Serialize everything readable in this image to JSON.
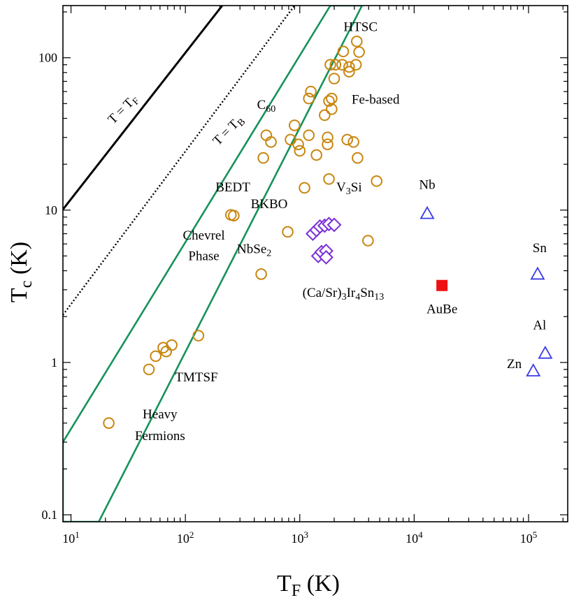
{
  "chart_data": {
    "type": "scatter",
    "xscale": "log",
    "yscale": "log",
    "xlim": [
      8.5,
      220000
    ],
    "ylim": [
      0.09,
      220
    ],
    "xlabel": {
      "main": "T",
      "sub": "F",
      "unit": " (K)"
    },
    "ylabel": {
      "main": "T",
      "sub": "c",
      "unit": " (K)"
    },
    "xticks": [
      {
        "value": 10,
        "base": "10",
        "exp": "1"
      },
      {
        "value": 100,
        "base": "10",
        "exp": "2"
      },
      {
        "value": 1000,
        "base": "10",
        "exp": "3"
      },
      {
        "value": 10000,
        "base": "10",
        "exp": "4"
      },
      {
        "value": 100000,
        "base": "10",
        "exp": "5"
      }
    ],
    "yticks": [
      {
        "value": 0.1,
        "label": "0.1"
      },
      {
        "value": 1,
        "label": "1"
      },
      {
        "value": 10,
        "label": "10"
      },
      {
        "value": 100,
        "label": "100"
      }
    ],
    "colors": {
      "circle": "#c8860f",
      "diamond": "#7a2fd6",
      "triangle": "#3a3ae8",
      "square": "#ee1111",
      "band": "#17925a",
      "line": "#000000"
    },
    "lines": [
      {
        "name": "T = T_F",
        "style": "solid",
        "points": [
          [
            8.5,
            10.1
          ],
          [
            210,
            220
          ]
        ]
      },
      {
        "name": "T = T_B",
        "style": "dotted",
        "points": [
          [
            8.5,
            2.05
          ],
          [
            900,
            220
          ]
        ]
      }
    ],
    "band": {
      "points": [
        [
          8.5,
          0.09
        ],
        [
          17.5,
          0.09
        ],
        [
          3500,
          220
        ],
        [
          1850,
          220
        ],
        [
          8.5,
          0.3
        ]
      ]
    },
    "series": [
      {
        "marker": "circle",
        "points": [
          [
            21.4,
            0.4
          ],
          [
            48,
            0.9
          ],
          [
            55,
            1.1
          ],
          [
            64,
            1.25
          ],
          [
            68,
            1.18
          ],
          [
            76,
            1.3
          ],
          [
            130,
            1.5
          ],
          [
            460,
            3.8
          ],
          [
            785,
            7.2
          ],
          [
            250,
            9.3
          ],
          [
            265,
            9.2
          ],
          [
            1100,
            14
          ],
          [
            1800,
            16
          ],
          [
            480,
            22
          ],
          [
            1400,
            23
          ],
          [
            3200,
            22
          ],
          [
            510,
            31
          ],
          [
            560,
            28
          ],
          [
            830,
            29
          ],
          [
            970,
            27
          ],
          [
            1000,
            24.5
          ],
          [
            1200,
            31
          ],
          [
            1750,
            27
          ],
          [
            1750,
            30
          ],
          [
            2600,
            29
          ],
          [
            2950,
            28
          ],
          [
            4700,
            15.5
          ],
          [
            3950,
            6.3
          ],
          [
            900,
            36
          ],
          [
            1650,
            42
          ],
          [
            1900,
            46
          ],
          [
            1800,
            52
          ],
          [
            1900,
            54
          ],
          [
            1200,
            54
          ],
          [
            1250,
            60
          ],
          [
            2000,
            73
          ],
          [
            1850,
            90
          ],
          [
            2050,
            90
          ],
          [
            2350,
            90
          ],
          [
            2700,
            87
          ],
          [
            3100,
            90
          ],
          [
            2700,
            81
          ],
          [
            2400,
            110
          ],
          [
            3300,
            109
          ],
          [
            3150,
            128
          ]
        ]
      },
      {
        "marker": "diamond",
        "points": [
          [
            1300,
            7
          ],
          [
            1400,
            7.4
          ],
          [
            1500,
            7.8
          ],
          [
            1650,
            7.9
          ],
          [
            1800,
            8.1
          ],
          [
            2000,
            8
          ],
          [
            1450,
            5
          ],
          [
            1550,
            5.3
          ],
          [
            1700,
            5.4
          ],
          [
            1700,
            4.9
          ]
        ]
      },
      {
        "marker": "triangle",
        "points": [
          [
            13000,
            9.5
          ],
          [
            120000,
            3.8
          ],
          [
            140000,
            1.15
          ],
          [
            110000,
            0.88
          ]
        ]
      },
      {
        "marker": "square",
        "points": [
          [
            17500,
            3.2
          ]
        ]
      }
    ],
    "annotations": [
      {
        "parts": [
          {
            "t": "T = T"
          },
          {
            "t": "F",
            "sub": true
          }
        ],
        "x": 30,
        "y": 44,
        "rotate": true
      },
      {
        "parts": [
          {
            "t": "T = T"
          },
          {
            "t": "B",
            "sub": true
          }
        ],
        "x": 250,
        "y": 32,
        "rotate": true
      },
      {
        "parts": [
          {
            "t": "HTSC"
          }
        ],
        "x": 3400,
        "y": 150
      },
      {
        "parts": [
          {
            "t": "C"
          },
          {
            "t": "60",
            "sub": true
          }
        ],
        "x": 510,
        "y": 46
      },
      {
        "parts": [
          {
            "t": "Fe-based"
          }
        ],
        "x": 4600,
        "y": 50
      },
      {
        "parts": [
          {
            "t": "BEDT"
          }
        ],
        "x": 260,
        "y": 13.3
      },
      {
        "parts": [
          {
            "t": "V"
          },
          {
            "t": "3",
            "sub": true
          },
          {
            "t": "Si"
          }
        ],
        "x": 2700,
        "y": 13.3
      },
      {
        "parts": [
          {
            "t": "Nb"
          }
        ],
        "x": 13000,
        "y": 13.8
      },
      {
        "parts": [
          {
            "t": "BKBO"
          }
        ],
        "x": 540,
        "y": 10.3
      },
      {
        "parts": [
          {
            "t": "Chevrel"
          }
        ],
        "x": 145,
        "y": 6.4
      },
      {
        "parts": [
          {
            "t": "Phase"
          }
        ],
        "x": 145,
        "y": 4.7
      },
      {
        "parts": [
          {
            "t": "NbSe"
          },
          {
            "t": "2",
            "sub": true
          }
        ],
        "x": 400,
        "y": 5.2
      },
      {
        "parts": [
          {
            "t": "Sn"
          }
        ],
        "x": 125000,
        "y": 5.3
      },
      {
        "parts": [
          {
            "t": "(Ca/Sr)"
          },
          {
            "t": "3",
            "sub": true
          },
          {
            "t": "Ir"
          },
          {
            "t": "4",
            "sub": true
          },
          {
            "t": "Sn"
          },
          {
            "t": "13",
            "sub": true
          }
        ],
        "x": 2400,
        "y": 2.7
      },
      {
        "parts": [
          {
            "t": "AuBe"
          }
        ],
        "x": 17500,
        "y": 2.1
      },
      {
        "parts": [
          {
            "t": "Al"
          }
        ],
        "x": 125000,
        "y": 1.65
      },
      {
        "parts": [
          {
            "t": "TMTSF"
          }
        ],
        "x": 125,
        "y": 0.75
      },
      {
        "parts": [
          {
            "t": "Zn"
          }
        ],
        "x": 75000,
        "y": 0.92
      },
      {
        "parts": [
          {
            "t": "Heavy"
          }
        ],
        "x": 60,
        "y": 0.43
      },
      {
        "parts": [
          {
            "t": "Fermions"
          }
        ],
        "x": 60,
        "y": 0.31
      }
    ]
  }
}
